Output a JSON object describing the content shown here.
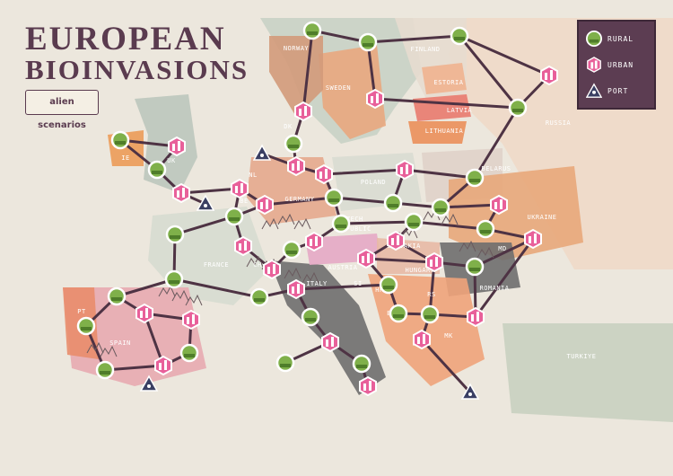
{
  "title": {
    "line1": "EUROPEAN",
    "line2": "BIOINVASIONS"
  },
  "logo_text": "alien scenarios",
  "legend": [
    {
      "label": "RURAL",
      "icon": "rural-icon"
    },
    {
      "label": "URBAN",
      "icon": "urban-icon"
    },
    {
      "label": "PORT",
      "icon": "port-icon"
    }
  ],
  "colors": {
    "rural": "#7fb04a",
    "urban": "#e8609a",
    "port": "#3a3f63",
    "water": "#ece7dd",
    "route": "#4e3344",
    "legend_bg": "#5c3d52"
  },
  "countries": [
    "NORWAY",
    "FINLAND",
    "SWEDEN",
    "ESTORIA",
    "LATVIA",
    "LITHUANIA",
    "RUSSIA",
    "DK",
    "IE",
    "UK",
    "NL",
    "BE",
    "GERMANY",
    "POLAND",
    "BELARUS",
    "UKRAINE",
    "CZECH",
    "REPUBLIC",
    "SLOVAKIA",
    "FRANCE",
    "CH",
    "AUSTRIA",
    "MD",
    "HUNGARY",
    "ROMANIA",
    "ITALY",
    "SI",
    "HR",
    "RS",
    "BA",
    "PT",
    "SPAIN",
    "AL",
    "MK",
    "TURKIYE"
  ]
}
